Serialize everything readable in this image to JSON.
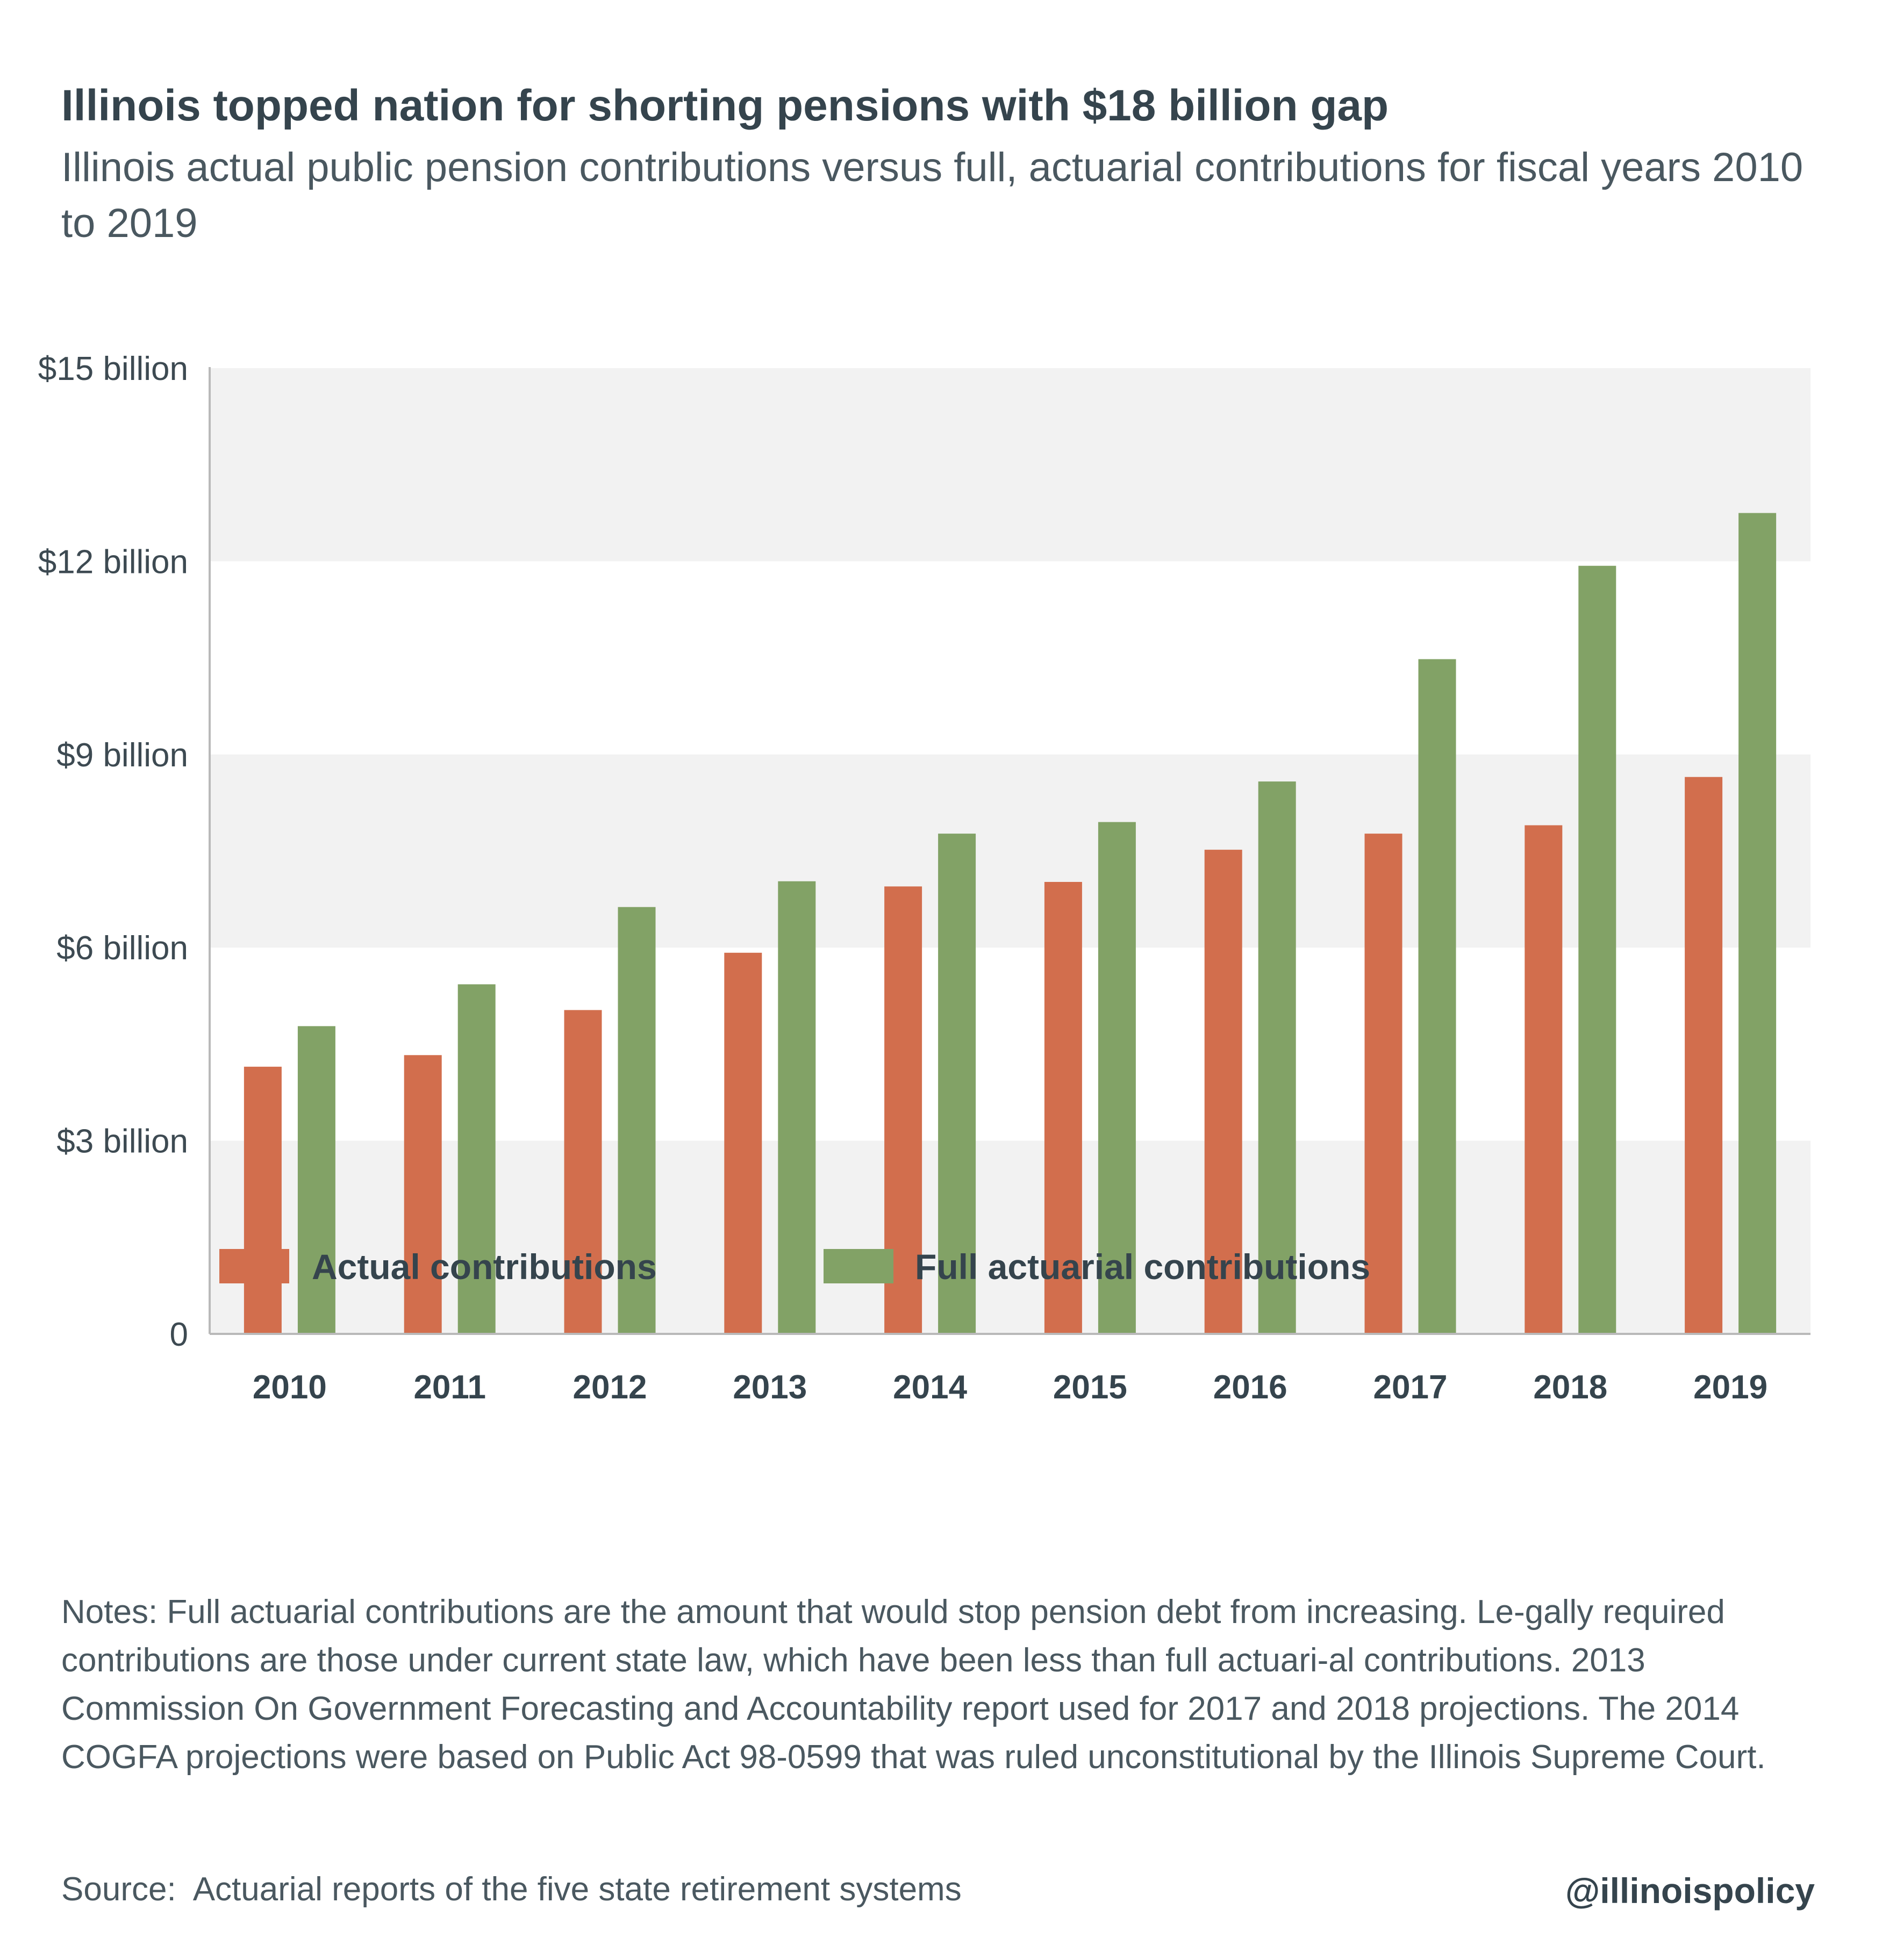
{
  "title": "Illinois topped nation for shorting pensions with $18 billion gap",
  "subtitle": "Illinois actual public pension contributions versus full, actuarial contributions for fiscal years 2010 to 2019",
  "notes": "Notes: Full actuarial contributions are the amount that would stop pension debt from increasing. Le-gally required contributions are those under current state law, which have been less than full actuari-al contributions. 2013 Commission On Government Forecasting and Accountability report used for 2017 and 2018 projections. The 2014 COGFA projections were based on Public Act 98-0599 that was ruled unconstitutional by the Illinois Supreme Court.",
  "source": "Source:  Actuarial reports of the five state retirement systems",
  "handle": "@illinoispolicy",
  "colors": {
    "actual": "#d26e4d",
    "full": "#82a266",
    "band": "#f2f2f2",
    "axis": "#b9b9b9"
  },
  "chart_data": {
    "type": "bar",
    "categories": [
      "2010",
      "2011",
      "2012",
      "2013",
      "2014",
      "2015",
      "2016",
      "2017",
      "2018",
      "2019"
    ],
    "series": [
      {
        "name": "Actual contributions",
        "values": [
          4.15,
          4.33,
          5.03,
          5.92,
          6.95,
          7.02,
          7.52,
          7.77,
          7.9,
          8.65
        ]
      },
      {
        "name": "Full actuarial contributions",
        "values": [
          4.78,
          5.43,
          6.63,
          7.03,
          7.77,
          7.95,
          8.58,
          10.48,
          11.93,
          12.75
        ]
      }
    ],
    "y_ticks": [
      {
        "value": 0,
        "label": "0"
      },
      {
        "value": 3,
        "label": "$3 billion"
      },
      {
        "value": 6,
        "label": "$6 billion"
      },
      {
        "value": 9,
        "label": "$9 billion"
      },
      {
        "value": 12,
        "label": "$12 billion"
      },
      {
        "value": 15,
        "label": "$15 billion"
      }
    ],
    "ylim": [
      0,
      15
    ],
    "grid": "alternating bands",
    "legend_position": "bottom"
  }
}
